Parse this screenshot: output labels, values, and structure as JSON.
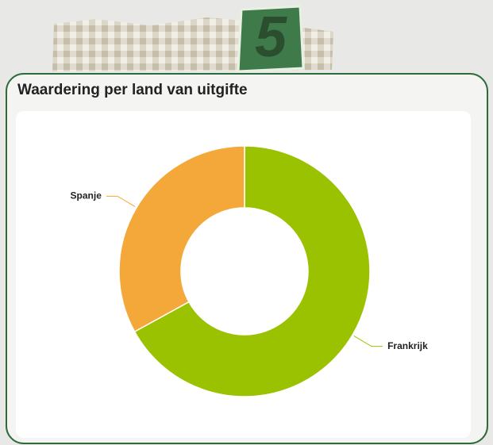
{
  "badge": "5",
  "chart_data": {
    "type": "pie",
    "title": "Waardering per land van uitgifte",
    "categories": [
      "Frankrijk",
      "Spanje"
    ],
    "values": [
      67,
      33
    ],
    "colors": [
      "#9bc200",
      "#f4a83a"
    ],
    "donut": true
  }
}
